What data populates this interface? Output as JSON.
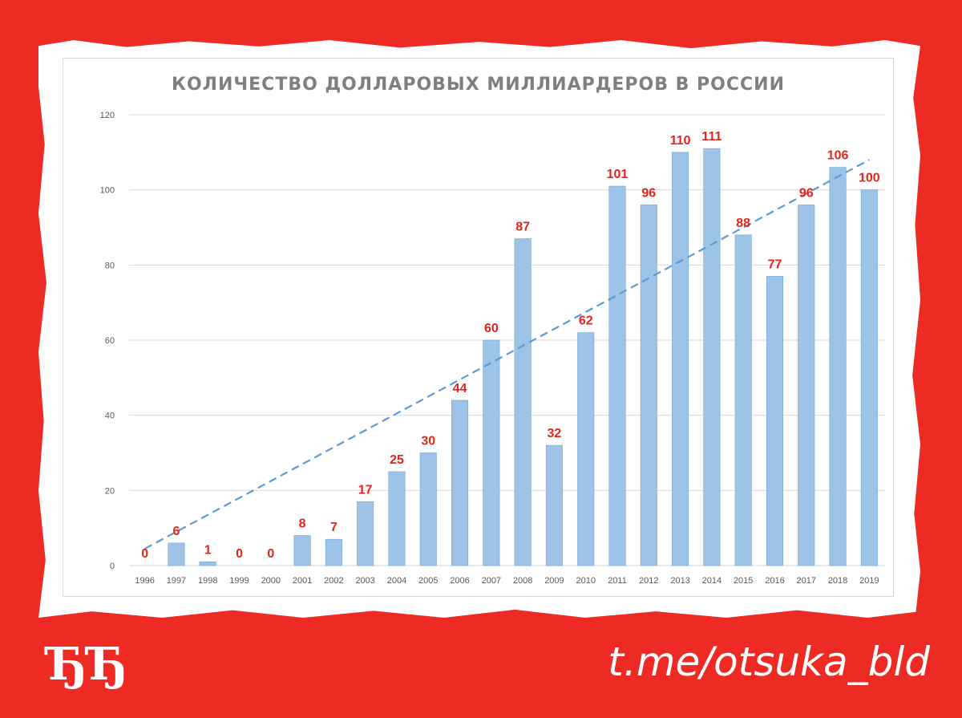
{
  "page": {
    "logo_text": "ЂЂ",
    "link_text": "t.me/otsuka_bld"
  },
  "colors": {
    "background": "#ee2a24",
    "bar": "#9dc3e6",
    "bar_stroke": "#6ea6d8",
    "trend": "#5b9bd5",
    "data_label": "#e3241c",
    "axis_text": "#595959",
    "title": "#7f7f7f",
    "grid": "#d9d9d9"
  },
  "chart_data": {
    "type": "bar",
    "title": "КОЛИЧЕСТВО ДОЛЛАРОВЫХ МИЛЛИАРДЕРОВ В РОССИИ",
    "xlabel": "",
    "ylabel": "",
    "ylim": [
      0,
      120
    ],
    "yticks": [
      0,
      20,
      40,
      60,
      80,
      100,
      120
    ],
    "grid": true,
    "legend": "none",
    "categories": [
      "1996",
      "1997",
      "1998",
      "1999",
      "2000",
      "2001",
      "2002",
      "2003",
      "2004",
      "2005",
      "2006",
      "2007",
      "2008",
      "2009",
      "2010",
      "2011",
      "2012",
      "2013",
      "2014",
      "2015",
      "2016",
      "2017",
      "2018",
      "2019"
    ],
    "values": [
      0,
      6,
      1,
      0,
      0,
      8,
      7,
      17,
      25,
      30,
      44,
      60,
      87,
      32,
      62,
      101,
      96,
      110,
      111,
      88,
      77,
      96,
      106,
      100
    ],
    "data_labels": [
      "0",
      "6",
      "1",
      "0",
      "0",
      "8",
      "7",
      "17",
      "25",
      "30",
      "44",
      "60",
      "87",
      "32",
      "62",
      "101",
      "96",
      "110",
      "111",
      "88",
      "77",
      "96",
      "106",
      "100"
    ],
    "trendline": {
      "type": "linear",
      "style": "dashed",
      "start_value": 4.5,
      "end_value": 108
    }
  }
}
